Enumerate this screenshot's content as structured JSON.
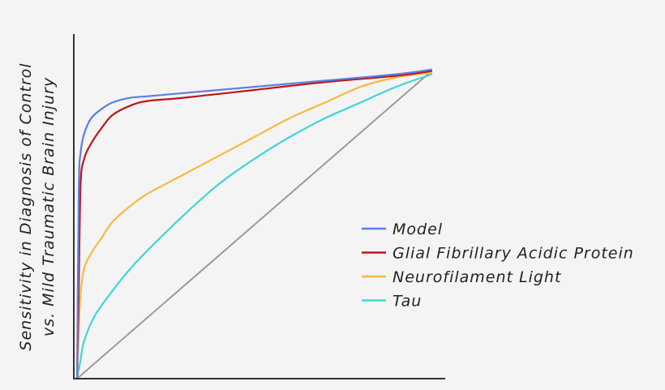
{
  "chart_data": {
    "type": "line",
    "title": "",
    "xlabel": "",
    "ylabel_line1": "Sensitivity in Diagnosis of Control",
    "ylabel_line2": "vs. Mild Traumatic Brain Injury",
    "xlim": [
      0,
      1
    ],
    "ylim": [
      0,
      1
    ],
    "grid": false,
    "legend_position": "center-right",
    "series": [
      {
        "name": "Model",
        "color": "#5b7fe0",
        "x": [
          0,
          0.005,
          0.01,
          0.02,
          0.04,
          0.07,
          0.1,
          0.15,
          0.2,
          0.3,
          0.5,
          0.7,
          0.9,
          1.0
        ],
        "y": [
          0,
          0.6,
          0.72,
          0.78,
          0.83,
          0.86,
          0.88,
          0.895,
          0.9,
          0.91,
          0.93,
          0.95,
          0.97,
          0.985
        ]
      },
      {
        "name": "Glial Fibrillary Acidic Protein",
        "color": "#c0141c",
        "x": [
          0,
          0.005,
          0.01,
          0.02,
          0.04,
          0.07,
          0.1,
          0.15,
          0.2,
          0.3,
          0.5,
          0.7,
          0.9,
          1.0
        ],
        "y": [
          0,
          0.3,
          0.62,
          0.7,
          0.75,
          0.8,
          0.84,
          0.87,
          0.885,
          0.895,
          0.92,
          0.945,
          0.965,
          0.98
        ]
      },
      {
        "name": "Neurofilament Light",
        "color": "#f8b940",
        "x": [
          0,
          0.005,
          0.01,
          0.02,
          0.04,
          0.07,
          0.1,
          0.15,
          0.2,
          0.3,
          0.4,
          0.5,
          0.6,
          0.7,
          0.8,
          0.9,
          1.0
        ],
        "y": [
          0,
          0.15,
          0.27,
          0.35,
          0.4,
          0.45,
          0.5,
          0.55,
          0.59,
          0.65,
          0.71,
          0.77,
          0.83,
          0.88,
          0.93,
          0.96,
          0.975
        ]
      },
      {
        "name": "Tau",
        "color": "#3fd6d6",
        "x": [
          0,
          0.01,
          0.02,
          0.05,
          0.1,
          0.15,
          0.2,
          0.3,
          0.4,
          0.5,
          0.6,
          0.7,
          0.8,
          0.9,
          1.0
        ],
        "y": [
          0,
          0.06,
          0.12,
          0.2,
          0.28,
          0.35,
          0.41,
          0.52,
          0.62,
          0.7,
          0.77,
          0.83,
          0.88,
          0.93,
          0.97
        ]
      },
      {
        "name": "",
        "color": "#9a9aa6",
        "x": [
          0,
          1
        ],
        "y": [
          0,
          0.98
        ]
      }
    ]
  }
}
